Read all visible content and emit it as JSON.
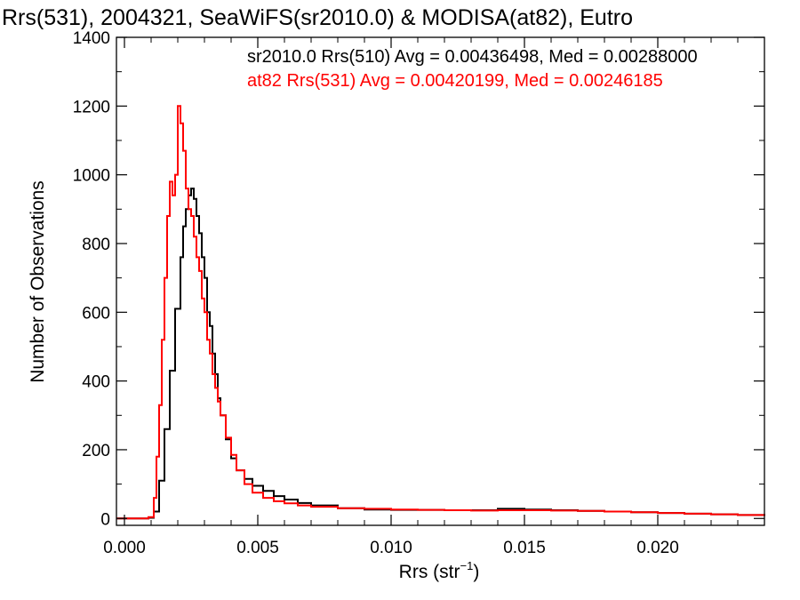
{
  "chart_data": {
    "type": "line",
    "title": "Rrs(531), 2004321, SeaWiFS(sr2010.0) & MODISA(at82), Eutro",
    "xlabel": "Rrs (str",
    "xlabel_sup": "−1",
    "xlabel_close": ")",
    "ylabel": "Number of Observations",
    "xlim": [
      -0.0003,
      0.024
    ],
    "ylim": [
      -20,
      1400
    ],
    "grid": false,
    "x_ticks": [
      0.0,
      0.005,
      0.01,
      0.015,
      0.02
    ],
    "x_tick_labels": [
      "0.000",
      "0.005",
      "0.010",
      "0.015",
      "0.020"
    ],
    "y_ticks": [
      0,
      200,
      400,
      600,
      800,
      1000,
      1200,
      1400
    ],
    "y_tick_labels": [
      "0",
      "200",
      "400",
      "600",
      "800",
      "1000",
      "1200",
      "1400"
    ],
    "annotations": [
      {
        "text": "sr2010.0 Rrs(510) Avg = 0.00436498, Med = 0.00288000",
        "color": "#000000"
      },
      {
        "text": "at82 Rrs(531) Avg = 0.00420199, Med = 0.00246185",
        "color": "#ff0000"
      }
    ],
    "series": [
      {
        "color": "#000000",
        "x": [
          -0.0003,
          0.0006,
          0.0009,
          0.0011,
          0.0013,
          0.0015,
          0.0017,
          0.0019,
          0.0021,
          0.0022,
          0.0023,
          0.0024,
          0.0025,
          0.0026,
          0.0027,
          0.0028,
          0.0029,
          0.003,
          0.0031,
          0.0032,
          0.0033,
          0.0034,
          0.0035,
          0.0036,
          0.0038,
          0.004,
          0.0042,
          0.0045,
          0.0048,
          0.0052,
          0.0056,
          0.006,
          0.0065,
          0.007,
          0.008,
          0.009,
          0.01,
          0.011,
          0.012,
          0.013,
          0.014,
          0.015,
          0.016,
          0.017,
          0.018,
          0.019,
          0.02,
          0.021,
          0.022,
          0.023,
          0.024
        ],
        "y": [
          0,
          0,
          2,
          20,
          110,
          260,
          430,
          610,
          760,
          850,
          900,
          940,
          960,
          930,
          880,
          830,
          760,
          700,
          600,
          560,
          480,
          420,
          350,
          300,
          230,
          175,
          140,
          115,
          95,
          80,
          65,
          55,
          45,
          38,
          30,
          26,
          25,
          25,
          24,
          24,
          28,
          26,
          24,
          22,
          20,
          18,
          16,
          14,
          12,
          10,
          8
        ]
      },
      {
        "color": "#ff0000",
        "x": [
          -0.0003,
          0.0006,
          0.0009,
          0.0011,
          0.0012,
          0.0013,
          0.0014,
          0.0015,
          0.0016,
          0.0017,
          0.0018,
          0.0019,
          0.002,
          0.0021,
          0.0022,
          0.0023,
          0.0024,
          0.0025,
          0.0026,
          0.0027,
          0.0028,
          0.0029,
          0.003,
          0.0031,
          0.0032,
          0.0033,
          0.0034,
          0.0035,
          0.0036,
          0.0038,
          0.004,
          0.0042,
          0.0045,
          0.0048,
          0.0052,
          0.0056,
          0.006,
          0.0065,
          0.007,
          0.008,
          0.009,
          0.01,
          0.011,
          0.012,
          0.013,
          0.014,
          0.015,
          0.016,
          0.017,
          0.018,
          0.019,
          0.02,
          0.021,
          0.022,
          0.023,
          0.024
        ],
        "y": [
          0,
          0,
          4,
          60,
          180,
          330,
          520,
          700,
          880,
          980,
          940,
          1000,
          1200,
          1150,
          1070,
          960,
          900,
          880,
          820,
          760,
          720,
          640,
          600,
          520,
          480,
          420,
          380,
          340,
          300,
          235,
          185,
          140,
          100,
          75,
          60,
          50,
          44,
          38,
          34,
          30,
          28,
          26,
          25,
          24,
          23,
          24,
          24,
          23,
          22,
          20,
          18,
          16,
          14,
          12,
          10,
          8
        ]
      }
    ]
  }
}
